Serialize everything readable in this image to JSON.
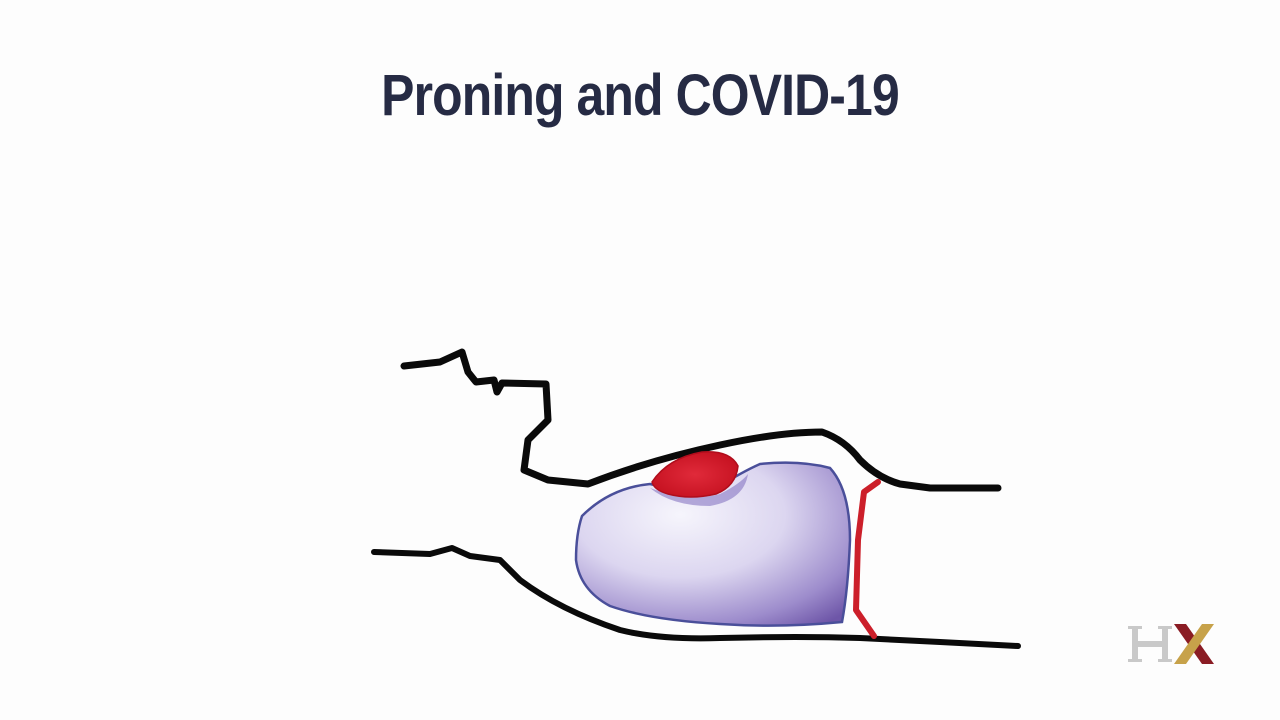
{
  "slide": {
    "title": "Proning and COVID-19"
  },
  "illustration": {
    "subject": "prone-patient-lung-drawing",
    "colors": {
      "outline": "#0a0a0a",
      "lung_light": "#f2f0fb",
      "lung_dark": "#6e56a8",
      "lung_edge": "#4a4f9a",
      "heart": "#d8182a",
      "vessel": "#cc1f2a"
    }
  },
  "logo": {
    "name": "hx-logo",
    "colors": {
      "h": "#c9c9c9",
      "x_left": "#8a1c24",
      "x_right": "#c7a24a"
    }
  }
}
